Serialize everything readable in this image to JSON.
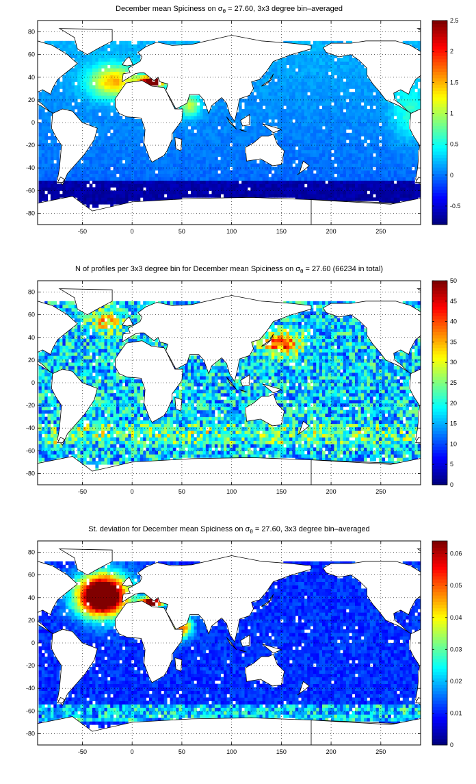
{
  "panels": [
    {
      "title_pre": "December mean Spiciness on σ",
      "title_sub": "θ",
      "title_post": " = 27.60, 3x3 degree bin–averaged",
      "colorbar_ticks": [
        "2.5",
        "2",
        "1.5",
        "1",
        "0.5",
        "0",
        "-0.5"
      ],
      "colorbar_range": [
        -0.8,
        2.5
      ]
    },
    {
      "title_pre": "N of profiles per 3x3 degree bin for December mean Spiciness on σ",
      "title_sub": "θ",
      "title_post": " = 27.60 (66234 in total)",
      "colorbar_ticks": [
        "50",
        "45",
        "40",
        "35",
        "30",
        "25",
        "20",
        "15",
        "10",
        "5",
        "0"
      ],
      "colorbar_range": [
        0,
        50
      ]
    },
    {
      "title_pre": "St. deviation for December mean Spiciness on σ",
      "title_sub": "θ",
      "title_post": " = 27.60, 3x3 degree bin–averaged",
      "colorbar_ticks": [
        "0.06",
        "0.05",
        "0.04",
        "0.03",
        "0.02",
        "0.01",
        "0"
      ],
      "colorbar_range": [
        0,
        0.064
      ]
    }
  ],
  "x_ticks": [
    "-50",
    "0",
    "50",
    "100",
    "150",
    "200",
    "250"
  ],
  "y_ticks": [
    "80",
    "60",
    "40",
    "20",
    "0",
    "-20",
    "-40",
    "-60",
    "-80"
  ],
  "x_range": [
    -95,
    290
  ],
  "y_range": [
    -90,
    90
  ],
  "colormap": "jet"
}
